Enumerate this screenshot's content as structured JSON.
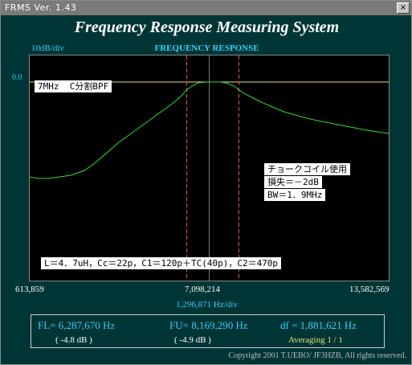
{
  "window": {
    "title": "FRMS   Ver. 1.43",
    "close_glyph": "×"
  },
  "heading": "Frequency Response Measuring System",
  "graph": {
    "title": "FREQUENCY RESPONSE",
    "y_per_div": "10dB/div",
    "ref_level": "0.0",
    "x_start": "613,859",
    "x_center": "7,098,214",
    "x_end": "13,582,569",
    "x_per_div": "1,296,871  Hz/div"
  },
  "annotations": {
    "filter_name": "7MHz  C分割BPF",
    "choke_lines": [
      "チョークコイル使用",
      "損失＝－2dB",
      "BW＝1．9MHz"
    ],
    "components": "L＝4．7uH，Cc＝22p，C1＝120p＋TC(40p)，C2＝470p"
  },
  "readout": {
    "fl": "FL= 6,287,670  Hz",
    "fl_db": "( -4.8 dB )",
    "fu": "FU= 8,169,290  Hz",
    "fu_db": "( -4.9 dB )",
    "df": "df = 1,881,621  Hz",
    "averaging": "Averaging   1 / 1"
  },
  "copyright": "Copyright 2001 T.UEBO/ JF3HZB, All rights reserved.",
  "colors": {
    "trace": "#33dd33",
    "marker": "#ff5050",
    "ref_line": "#e8e070",
    "label": "#34d0ff"
  },
  "chart_data": {
    "type": "line",
    "xlim": [
      613859,
      13582569
    ],
    "ylim": [
      -80,
      10
    ],
    "markers": [
      6287670,
      8169290
    ],
    "x": [
      613859,
      900000,
      1300000,
      1700000,
      2100000,
      2600000,
      3000000,
      3400000,
      3800000,
      4200000,
      4600000,
      5000000,
      5400000,
      5800000,
      6100000,
      6287670,
      6500000,
      6700000,
      7000000,
      7300000,
      7500000,
      7700000,
      8000000,
      8169290,
      8400000,
      8800000,
      9300000,
      9800000,
      10400000,
      11000000,
      11600000,
      12200000,
      12800000,
      13582569
    ],
    "y": [
      -59,
      -60,
      -60,
      -59,
      -58,
      -55,
      -50,
      -44,
      -38,
      -33,
      -28,
      -23,
      -18,
      -13,
      -8.5,
      -4.8,
      -2.2,
      -0.5,
      0,
      0,
      0,
      -0.5,
      -2.5,
      -4.9,
      -7.5,
      -11,
      -15,
      -18.5,
      -21.5,
      -24,
      -26,
      -28,
      -30,
      -32
    ]
  }
}
